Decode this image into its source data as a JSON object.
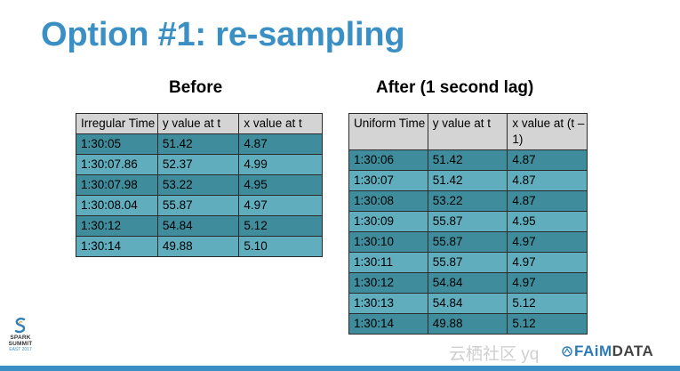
{
  "slide": {
    "title": "Option #1: re-sampling"
  },
  "before": {
    "heading": "Before",
    "headers": [
      "Irregular Time",
      "y value at t",
      "x value at t"
    ],
    "rows": [
      [
        "1:30:05",
        "51.42",
        "4.87"
      ],
      [
        "1:30:07.86",
        "52.37",
        "4.99"
      ],
      [
        "1:30:07.98",
        "53.22",
        "4.95"
      ],
      [
        "1:30:08.04",
        "55.87",
        "4.97"
      ],
      [
        "1:30:12",
        "54.84",
        "5.12"
      ],
      [
        "1:30:14",
        "49.88",
        "5.10"
      ]
    ]
  },
  "after": {
    "heading": "After (1 second lag)",
    "headers": [
      "Uniform Time",
      "y value at t",
      "x value at (t – 1)"
    ],
    "rows": [
      [
        "1:30:06",
        "51.42",
        "4.87"
      ],
      [
        "1:30:07",
        "51.42",
        "4.87"
      ],
      [
        "1:30:08",
        "53.22",
        "4.87"
      ],
      [
        "1:30:09",
        "55.87",
        "4.95"
      ],
      [
        "1:30:10",
        "55.87",
        "4.97"
      ],
      [
        "1:30:11",
        "55.87",
        "4.97"
      ],
      [
        "1:30:12",
        "54.84",
        "4.97"
      ],
      [
        "1:30:13",
        "54.84",
        "5.12"
      ],
      [
        "1:30:14",
        "49.88",
        "5.12"
      ]
    ]
  },
  "footer": {
    "logo": {
      "line1": "SPARK",
      "line2": "SUMMIT",
      "line3": "EAST 2017"
    },
    "watermark": "云栖社区 yq",
    "brand_a": "FAiM",
    "brand_b": "DATA",
    "accent_color": "#3a8fc4",
    "row_dark": "#3f8d9c",
    "row_light": "#5fadbd"
  }
}
